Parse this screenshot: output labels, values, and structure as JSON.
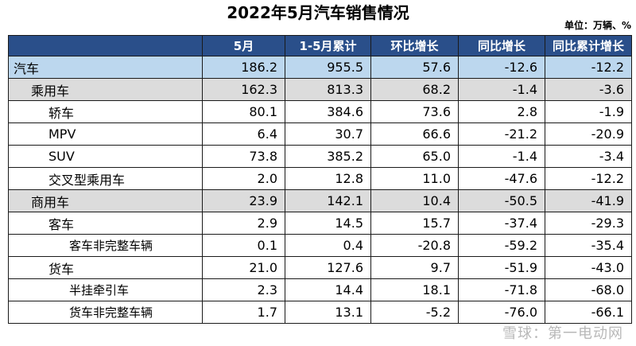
{
  "title": "2022年5月汽车销售情况",
  "unit": "单位：万辆、%",
  "headers": [
    "",
    "5月",
    "1-5月累计",
    "环比增长",
    "同比增长",
    "同比累计增长"
  ],
  "rows": [
    {
      "label": "汽车",
      "level": 0,
      "values": [
        "186.2",
        "955.5",
        "57.6",
        "-12.6",
        "-12.2"
      ]
    },
    {
      "label": "乘用车",
      "level": 1,
      "values": [
        "162.3",
        "813.3",
        "68.2",
        "-1.4",
        "-3.6"
      ]
    },
    {
      "label": "轿车",
      "level": 2,
      "values": [
        "80.1",
        "384.6",
        "73.6",
        "2.8",
        "-1.9"
      ]
    },
    {
      "label": "MPV",
      "level": 2,
      "values": [
        "6.4",
        "30.7",
        "66.6",
        "-21.2",
        "-20.9"
      ]
    },
    {
      "label": "SUV",
      "level": 2,
      "values": [
        "73.8",
        "385.2",
        "65.0",
        "-1.4",
        "-3.4"
      ]
    },
    {
      "label": "交叉型乘用车",
      "level": 2,
      "values": [
        "2.0",
        "12.8",
        "11.0",
        "-47.6",
        "-12.2"
      ]
    },
    {
      "label": "商用车",
      "level": 1,
      "values": [
        "23.9",
        "142.1",
        "10.4",
        "-50.5",
        "-41.9"
      ]
    },
    {
      "label": "客车",
      "level": 2,
      "values": [
        "2.9",
        "14.5",
        "15.7",
        "-37.4",
        "-29.3"
      ]
    },
    {
      "label": "客车非完整车辆",
      "level": 3,
      "values": [
        "0.1",
        "0.4",
        "-20.8",
        "-59.2",
        "-35.4"
      ]
    },
    {
      "label": "货车",
      "level": 2,
      "values": [
        "21.0",
        "127.6",
        "9.7",
        "-51.9",
        "-43.0"
      ]
    },
    {
      "label": "半挂牵引车",
      "level": 3,
      "values": [
        "2.3",
        "14.4",
        "18.1",
        "-71.8",
        "-68.0"
      ]
    },
    {
      "label": "货车非完整车辆",
      "level": 3,
      "values": [
        "1.7",
        "13.1",
        "-5.2",
        "-76.0",
        "-66.1"
      ]
    }
  ],
  "watermark": "雪球：第一电动网"
}
